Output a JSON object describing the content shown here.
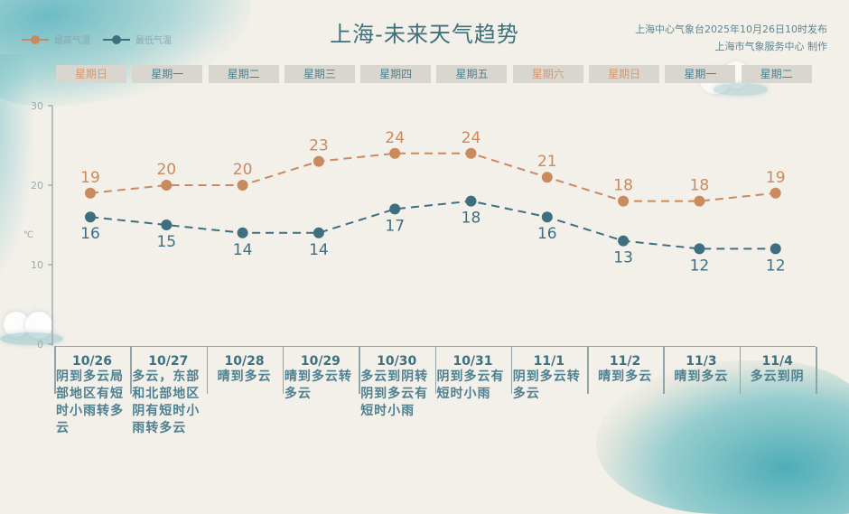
{
  "header": {
    "title": "上海-未来天气趋势",
    "source_line1": "上海中心气象台2025年10月26日10时发布",
    "source_line2": "上海市气象服务中心 制作"
  },
  "legend": {
    "high": "最高气温",
    "low": "最低气温"
  },
  "colors": {
    "high": "#c98a5e",
    "low": "#3e6f80",
    "axis": "#8fa5a8",
    "weekend_text": "#d29a72",
    "weekday_text": "#4f7f8a"
  },
  "days": [
    {
      "weekday": "星期日",
      "date": "10/26",
      "weather": "阴到多云局部地区有短时小雨转多云",
      "weekend": true
    },
    {
      "weekday": "星期一",
      "date": "10/27",
      "weather": "多云，东部和北部地区阴有短时小雨转多云",
      "weekend": false
    },
    {
      "weekday": "星期二",
      "date": "10/28",
      "weather": "晴到多云",
      "weekend": false
    },
    {
      "weekday": "星期三",
      "date": "10/29",
      "weather": "晴到多云转多云",
      "weekend": false
    },
    {
      "weekday": "星期四",
      "date": "10/30",
      "weather": "多云到阴转阴到多云有短时小雨",
      "weekend": false
    },
    {
      "weekday": "星期五",
      "date": "10/31",
      "weather": "阴到多云有短时小雨",
      "weekend": false
    },
    {
      "weekday": "星期六",
      "date": "11/1",
      "weather": "阴到多云转多云",
      "weekend": true
    },
    {
      "weekday": "星期日",
      "date": "11/2",
      "weather": "晴到多云",
      "weekend": true
    },
    {
      "weekday": "星期一",
      "date": "11/3",
      "weather": "晴到多云",
      "weekend": false
    },
    {
      "weekday": "星期二",
      "date": "11/4",
      "weather": "多云到阴",
      "weekend": false
    }
  ],
  "chart_data": {
    "type": "line",
    "title": "上海-未来天气趋势",
    "xlabel": "",
    "ylabel": "℃",
    "ylim": [
      0,
      30
    ],
    "yticks": [
      0,
      10,
      20,
      30
    ],
    "categories": [
      "10/26",
      "10/27",
      "10/28",
      "10/29",
      "10/30",
      "10/31",
      "11/1",
      "11/2",
      "11/3",
      "11/4"
    ],
    "series": [
      {
        "name": "最高气温",
        "values": [
          19,
          20,
          20,
          23,
          24,
          24,
          21,
          18,
          18,
          19
        ],
        "color": "#c98a5e",
        "style": "dashed"
      },
      {
        "name": "最低气温",
        "values": [
          16,
          15,
          14,
          14,
          17,
          18,
          16,
          13,
          12,
          12
        ],
        "color": "#3e6f80",
        "style": "dashed"
      }
    ],
    "legend_position": "top-left",
    "grid": false
  }
}
